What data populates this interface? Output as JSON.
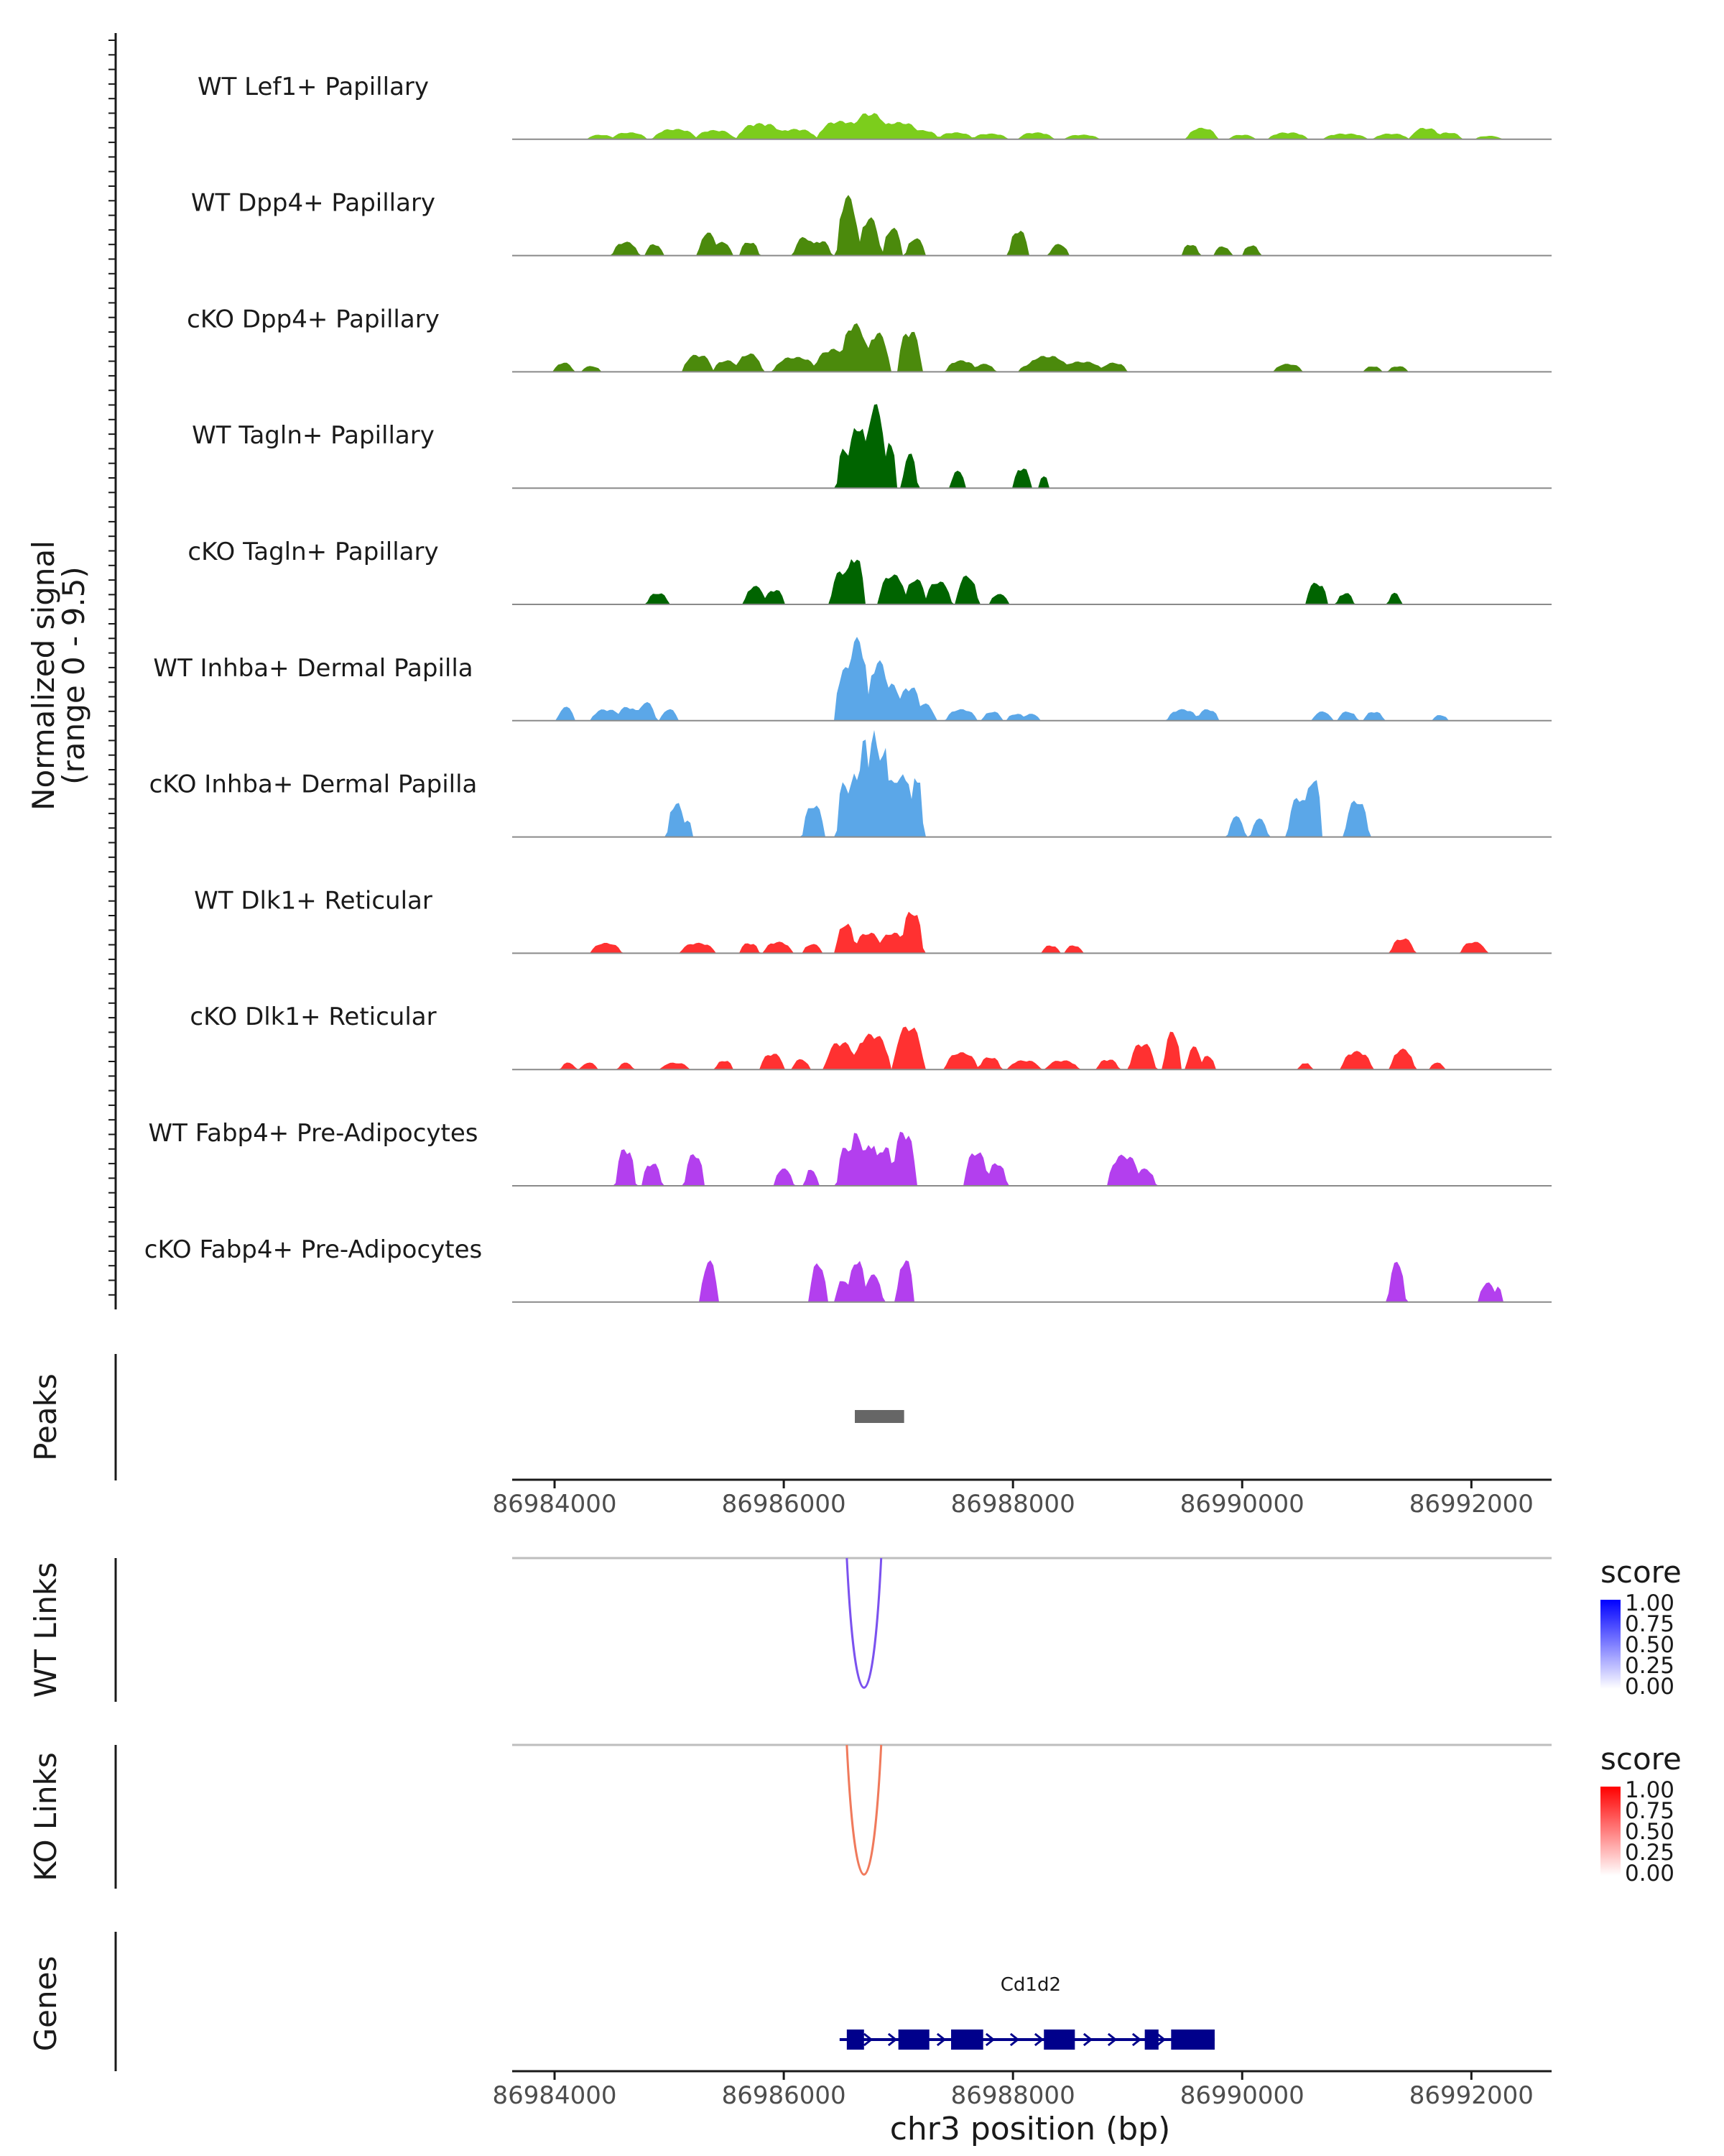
{
  "chart_data": {
    "type": "area",
    "title": "",
    "chromosome": "chr3",
    "xlabel": "chr3 position (bp)",
    "xlim": [
      86983630,
      86992700
    ],
    "xticks": [
      86984000,
      86986000,
      86988000,
      86990000,
      86992000
    ],
    "xtick_labels": [
      "86984000",
      "86986000",
      "86988000",
      "86990000",
      "86992000"
    ],
    "coverage": {
      "ylabel": "Normalized signal",
      "yrange_label": "(range 0 - 9.5)",
      "ylim": [
        0,
        9.5
      ],
      "series": [
        {
          "name": "WT Lef1+ Papillary",
          "color": "#7ccd1c",
          "peaks": [
            [
              86984400,
              120,
              0.4
            ],
            [
              86984650,
              160,
              0.6
            ],
            [
              86985050,
              200,
              0.9
            ],
            [
              86985400,
              180,
              0.8
            ],
            [
              86985800,
              220,
              1.4
            ],
            [
              86986100,
              200,
              0.9
            ],
            [
              86986500,
              220,
              1.6
            ],
            [
              86986750,
              180,
              2.3
            ],
            [
              86987000,
              220,
              1.5
            ],
            [
              86987200,
              160,
              0.8
            ],
            [
              86987500,
              160,
              0.6
            ],
            [
              86987800,
              160,
              0.5
            ],
            [
              86988200,
              160,
              0.6
            ],
            [
              86988600,
              160,
              0.4
            ],
            [
              86989650,
              140,
              1.0
            ],
            [
              86990000,
              120,
              0.4
            ],
            [
              86990400,
              180,
              0.6
            ],
            [
              86990900,
              200,
              0.5
            ],
            [
              86991300,
              160,
              0.5
            ],
            [
              86991600,
              140,
              1.0
            ],
            [
              86991800,
              120,
              0.6
            ],
            [
              86992150,
              120,
              0.3
            ]
          ]
        },
        {
          "name": "WT Dpp4+ Papillary",
          "color": "#4b8a0c",
          "peaks": [
            [
              86984620,
              120,
              1.2
            ],
            [
              86984870,
              80,
              1.0
            ],
            [
              86985340,
              90,
              2.0
            ],
            [
              86985470,
              80,
              1.2
            ],
            [
              86985700,
              90,
              1.2
            ],
            [
              86986180,
              100,
              1.6
            ],
            [
              86986320,
              100,
              1.3
            ],
            [
              86986560,
              100,
              5.2
            ],
            [
              86986750,
              100,
              3.3
            ],
            [
              86986950,
              90,
              2.4
            ],
            [
              86987150,
              90,
              1.5
            ],
            [
              86988050,
              90,
              2.2
            ],
            [
              86988400,
              90,
              1.0
            ],
            [
              86989550,
              80,
              1.0
            ],
            [
              86989830,
              80,
              0.8
            ],
            [
              86990080,
              80,
              0.9
            ]
          ]
        },
        {
          "name": "cKO Dpp4+ Papillary",
          "color": "#4b8a0c",
          "peaks": [
            [
              86984080,
              90,
              0.8
            ],
            [
              86984320,
              90,
              0.5
            ],
            [
              86985250,
              140,
              1.5
            ],
            [
              86985500,
              120,
              1.0
            ],
            [
              86985700,
              120,
              1.6
            ],
            [
              86986100,
              200,
              1.3
            ],
            [
              86986450,
              200,
              2.0
            ],
            [
              86986620,
              130,
              4.2
            ],
            [
              86986820,
              110,
              3.4
            ],
            [
              86987100,
              110,
              3.6
            ],
            [
              86987550,
              140,
              1.0
            ],
            [
              86987750,
              100,
              0.7
            ],
            [
              86988130,
              80,
              0.6
            ],
            [
              86988300,
              200,
              1.4
            ],
            [
              86988600,
              200,
              0.9
            ],
            [
              86988880,
              120,
              0.8
            ],
            [
              86990400,
              130,
              0.7
            ],
            [
              86991140,
              80,
              0.5
            ],
            [
              86991360,
              90,
              0.5
            ]
          ]
        },
        {
          "name": "WT Tagln+ Papillary",
          "color": "#006400",
          "peaks": [
            [
              86986530,
              70,
              3.5
            ],
            [
              86986650,
              100,
              5.5
            ],
            [
              86986800,
              100,
              7.3
            ],
            [
              86986930,
              60,
              4.0
            ],
            [
              86987100,
              70,
              3.0
            ],
            [
              86987520,
              70,
              1.5
            ],
            [
              86988080,
              80,
              1.8
            ],
            [
              86988270,
              40,
              1.2
            ]
          ]
        },
        {
          "name": "cKO Tagln+ Papillary",
          "color": "#006400",
          "peaks": [
            [
              86984900,
              100,
              1.0
            ],
            [
              86985750,
              100,
              1.6
            ],
            [
              86985920,
              90,
              1.3
            ],
            [
              86986520,
              120,
              3.0
            ],
            [
              86986620,
              90,
              4.2
            ],
            [
              86986950,
              130,
              2.6
            ],
            [
              86987150,
              100,
              2.2
            ],
            [
              86987350,
              120,
              2.0
            ],
            [
              86987600,
              100,
              2.5
            ],
            [
              86987880,
              90,
              0.9
            ],
            [
              86990650,
              100,
              1.9
            ],
            [
              86990900,
              80,
              1.0
            ],
            [
              86991330,
              60,
              1.0
            ]
          ]
        },
        {
          "name": "WT Inhba+ Dermal Papilla",
          "color": "#5ba7e8",
          "peaks": [
            [
              86984100,
              80,
              1.2
            ],
            [
              86984450,
              140,
              1.0
            ],
            [
              86984640,
              110,
              1.2
            ],
            [
              86984800,
              90,
              1.6
            ],
            [
              86985000,
              80,
              1.0
            ],
            [
              86986540,
              100,
              4.6
            ],
            [
              86986640,
              110,
              7.2
            ],
            [
              86986830,
              110,
              5.2
            ],
            [
              86986950,
              90,
              3.2
            ],
            [
              86987100,
              110,
              3.0
            ],
            [
              86987220,
              110,
              1.5
            ],
            [
              86987550,
              140,
              1.0
            ],
            [
              86987820,
              90,
              0.8
            ],
            [
              86988030,
              90,
              0.6
            ],
            [
              86988160,
              80,
              0.6
            ],
            [
              86989480,
              140,
              1.0
            ],
            [
              86989700,
              100,
              1.0
            ],
            [
              86990700,
              90,
              0.8
            ],
            [
              86990920,
              90,
              0.8
            ],
            [
              86991150,
              90,
              0.8
            ],
            [
              86991730,
              70,
              0.5
            ]
          ]
        },
        {
          "name": "cKO Inhba+ Dermal Papilla",
          "color": "#5ba7e8",
          "peaks": [
            [
              86985060,
              80,
              3.0
            ],
            [
              86985150,
              60,
              1.5
            ],
            [
              86986260,
              100,
              2.8
            ],
            [
              86986530,
              70,
              4.8
            ],
            [
              86986620,
              60,
              5.5
            ],
            [
              86986700,
              60,
              8.5
            ],
            [
              86986780,
              60,
              9.5
            ],
            [
              86986870,
              60,
              8.2
            ],
            [
              86986960,
              60,
              5.5
            ],
            [
              86987050,
              70,
              5.8
            ],
            [
              86987160,
              60,
              5.6
            ],
            [
              86989950,
              80,
              1.8
            ],
            [
              86990150,
              80,
              1.6
            ],
            [
              86990500,
              110,
              3.5
            ],
            [
              86990620,
              80,
              5.2
            ],
            [
              86991000,
              110,
              3.2
            ]
          ]
        },
        {
          "name": "WT Dlk1+ Reticular",
          "color": "#ff3131",
          "peaks": [
            [
              86984450,
              140,
              0.9
            ],
            [
              86985250,
              160,
              0.9
            ],
            [
              86985700,
              90,
              0.9
            ],
            [
              86985950,
              130,
              1.0
            ],
            [
              86986250,
              90,
              0.8
            ],
            [
              86986540,
              90,
              2.6
            ],
            [
              86986740,
              130,
              1.8
            ],
            [
              86986950,
              130,
              1.8
            ],
            [
              86987120,
              100,
              3.7
            ],
            [
              86988330,
              80,
              0.7
            ],
            [
              86988530,
              80,
              0.7
            ],
            [
              86991400,
              110,
              1.3
            ],
            [
              86992020,
              120,
              1.0
            ]
          ]
        },
        {
          "name": "cKO Dlk1+ Reticular",
          "color": "#ff3131",
          "peaks": [
            [
              86984120,
              70,
              0.6
            ],
            [
              86984300,
              80,
              0.6
            ],
            [
              86984620,
              70,
              0.6
            ],
            [
              86985050,
              130,
              0.6
            ],
            [
              86985480,
              80,
              0.8
            ],
            [
              86985900,
              110,
              1.4
            ],
            [
              86986150,
              80,
              0.9
            ],
            [
              86986500,
              150,
              2.4
            ],
            [
              86986770,
              170,
              3.1
            ],
            [
              86987090,
              140,
              3.8
            ],
            [
              86987550,
              150,
              1.5
            ],
            [
              86987800,
              100,
              1.1
            ],
            [
              86988100,
              150,
              0.8
            ],
            [
              86988430,
              150,
              0.8
            ],
            [
              86988830,
              100,
              0.9
            ],
            [
              86989130,
              120,
              2.3
            ],
            [
              86989390,
              80,
              3.3
            ],
            [
              86989580,
              70,
              2.0
            ],
            [
              86989700,
              70,
              1.2
            ],
            [
              86990550,
              60,
              0.6
            ],
            [
              86991000,
              140,
              1.6
            ],
            [
              86991400,
              110,
              1.8
            ],
            [
              86991700,
              70,
              0.6
            ]
          ]
        },
        {
          "name": "WT Fabp4+ Pre-Adipocytes",
          "color": "#b33fee",
          "peaks": [
            [
              86984620,
              90,
              3.3
            ],
            [
              86984850,
              90,
              2.0
            ],
            [
              86985220,
              90,
              2.8
            ],
            [
              86986000,
              90,
              1.5
            ],
            [
              86986240,
              60,
              1.5
            ],
            [
              86986550,
              90,
              3.5
            ],
            [
              86986640,
              70,
              4.8
            ],
            [
              86986760,
              80,
              3.8
            ],
            [
              86986880,
              80,
              3.5
            ],
            [
              86987050,
              110,
              4.8
            ],
            [
              86987680,
              110,
              3.0
            ],
            [
              86987860,
              90,
              2.0
            ],
            [
              86988970,
              150,
              2.7
            ],
            [
              86989150,
              100,
              1.5
            ]
          ]
        },
        {
          "name": "cKO Fabp4+ Pre-Adipocytes",
          "color": "#b33fee",
          "peaks": [
            [
              86985350,
              80,
              3.6
            ],
            [
              86986300,
              80,
              3.4
            ],
            [
              86986520,
              70,
              2.0
            ],
            [
              86986640,
              80,
              3.7
            ],
            [
              86986780,
              90,
              2.4
            ],
            [
              86987060,
              80,
              3.7
            ],
            [
              86991350,
              80,
              3.5
            ],
            [
              86992140,
              80,
              1.7
            ],
            [
              86992230,
              40,
              1.4
            ]
          ]
        }
      ]
    },
    "peaks_track": {
      "label": "Peaks",
      "color": "#666666",
      "regions": [
        [
          86986620,
          86987050
        ]
      ]
    },
    "links_tracks": [
      {
        "label": "WT Links",
        "link_color": "#7b52ef",
        "links": [
          {
            "start": 86986550,
            "end": 86986850,
            "score": 0.65
          }
        ],
        "legend": {
          "title": "score",
          "ticks": [
            "1.00",
            "0.75",
            "0.50",
            "0.25",
            "0.00"
          ],
          "low": "#ffffff",
          "high": "#0000ff"
        }
      },
      {
        "label": "KO Links",
        "link_color": "#f07a5c",
        "links": [
          {
            "start": 86986550,
            "end": 86986850,
            "score": 0.55
          }
        ],
        "legend": {
          "title": "score",
          "ticks": [
            "1.00",
            "0.75",
            "0.50",
            "0.25",
            "0.00"
          ],
          "low": "#ffffff",
          "high": "#ff0000"
        }
      }
    ],
    "genes_track": {
      "label": "Genes",
      "color": "#00008b",
      "genes": [
        {
          "name": "Cd1d2",
          "start": 86986550,
          "end": 86989760,
          "strand": "+",
          "exons": [
            [
              86986550,
              86986700
            ],
            [
              86987000,
              86987270
            ],
            [
              86987460,
              86987740
            ],
            [
              86988270,
              86988540
            ],
            [
              86989150,
              86989270
            ],
            [
              86989380,
              86989760
            ]
          ]
        }
      ]
    }
  }
}
